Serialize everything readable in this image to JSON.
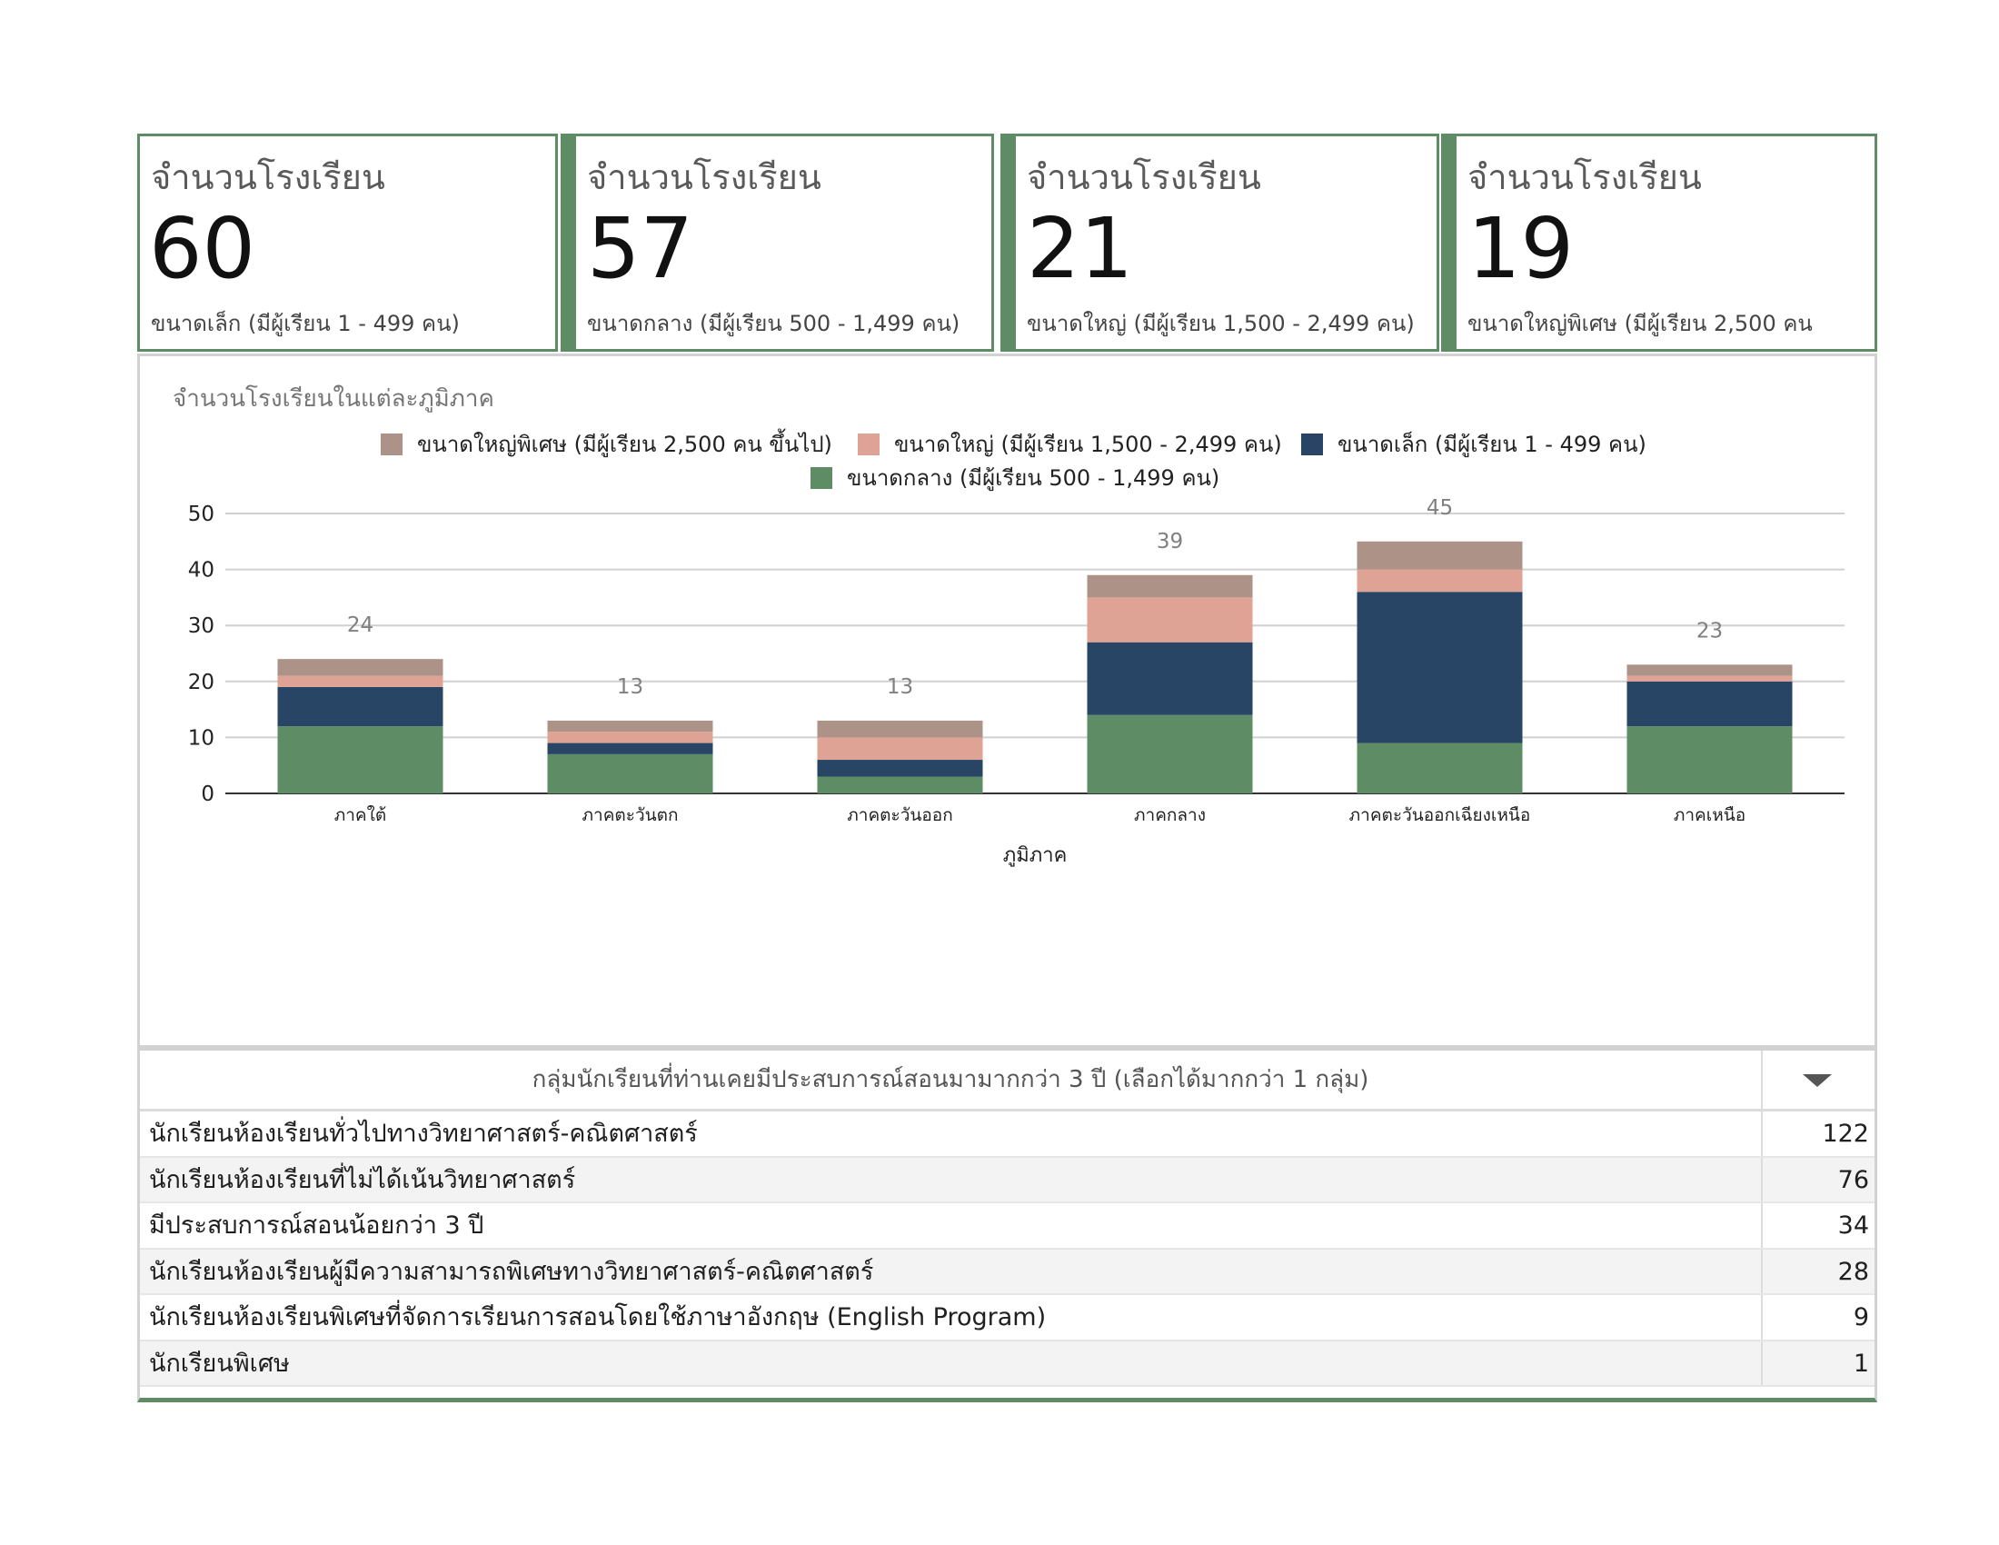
{
  "cards": [
    {
      "title": "จำนวนโรงเรียน",
      "value": "60",
      "subtitle": "ขนาดเล็ก (มีผู้เรียน 1 - 499 คน)"
    },
    {
      "title": "จำนวนโรงเรียน",
      "value": "57",
      "subtitle": "ขนาดกลาง (มีผู้เรียน 500 - 1,499 คน)"
    },
    {
      "title": "จำนวนโรงเรียน",
      "value": "21",
      "subtitle": "ขนาดใหญ่ (มีผู้เรียน 1,500 - 2,499 คน)"
    },
    {
      "title": "จำนวนโรงเรียน",
      "value": "19",
      "subtitle": "ขนาดใหญ่พิเศษ (มีผู้เรียน 2,500 คน"
    }
  ],
  "colors": {
    "accent": "#5e8c64",
    "medium": "#5e8c64",
    "small": "#284566",
    "large": "#dfa396",
    "xlarge": "#ad9287"
  },
  "chart_data": {
    "type": "bar",
    "stacked": true,
    "title": "จำนวนโรงเรียนในแต่ละภูมิภาค",
    "xlabel": "ภูมิภาค",
    "ylabel": "",
    "ylim": [
      0,
      50
    ],
    "yticks": [
      "0",
      "10",
      "20",
      "30",
      "40",
      "50"
    ],
    "grid": true,
    "legend_position": "top",
    "categories": [
      "ภาคใต้",
      "ภาคตะวันตก",
      "ภาคตะวันออก",
      "ภาคกลาง",
      "ภาคตะวันออกเฉียงเหนือ",
      "ภาคเหนือ"
    ],
    "totals": [
      24,
      13,
      13,
      39,
      45,
      23
    ],
    "legend_order": [
      "xlarge",
      "large",
      "small",
      "medium"
    ],
    "series": [
      {
        "key": "medium",
        "name": "ขนาดกลาง (มีผู้เรียน 500 - 1,499 คน)",
        "color": "#5e8c64",
        "values": [
          12,
          7,
          3,
          14,
          9,
          12
        ]
      },
      {
        "key": "small",
        "name": "ขนาดเล็ก (มีผู้เรียน 1 - 499 คน)",
        "color": "#284566",
        "values": [
          7,
          2,
          3,
          13,
          27,
          8
        ]
      },
      {
        "key": "large",
        "name": "ขนาดใหญ่ (มีผู้เรียน 1,500 - 2,499 คน)",
        "color": "#dfa396",
        "values": [
          2,
          2,
          4,
          8,
          4,
          1
        ]
      },
      {
        "key": "xlarge",
        "name": "ขนาดใหญ่พิเศษ (มีผู้เรียน 2,500 คน ขึ้นไป)",
        "color": "#ad9287",
        "values": [
          3,
          2,
          3,
          4,
          5,
          2
        ]
      }
    ]
  },
  "table": {
    "header": "กลุ่มนักเรียนที่ท่านเคยมีประสบการณ์สอนมามากกว่า 3 ปี (เลือกได้มากกว่า 1 กลุ่ม)",
    "rows": [
      {
        "label": "นักเรียนห้องเรียนทั่วไปทางวิทยาศาสตร์-คณิตศาสตร์",
        "value": "122"
      },
      {
        "label": "นักเรียนห้องเรียนที่ไม่ได้เน้นวิทยาศาสตร์",
        "value": "76"
      },
      {
        "label": "มีประสบการณ์สอนน้อยกว่า 3 ปี",
        "value": "34"
      },
      {
        "label": "นักเรียนห้องเรียนผู้มีความสามารถพิเศษทางวิทยาศาสตร์-คณิตศาสตร์",
        "value": "28"
      },
      {
        "label": "นักเรียนห้องเรียนพิเศษที่จัดการเรียนการสอนโดยใช้ภาษาอังกฤษ (English Program)",
        "value": "9"
      },
      {
        "label": "นักเรียนพิเศษ",
        "value": "1"
      }
    ]
  }
}
